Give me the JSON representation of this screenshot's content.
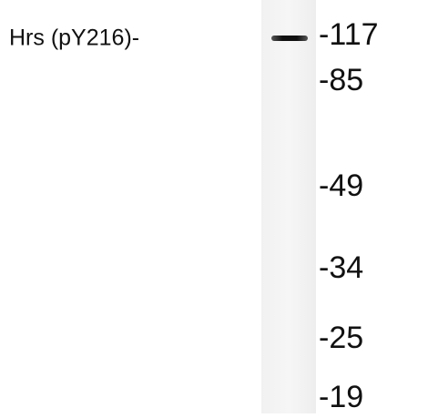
{
  "blot": {
    "band_label": "Hrs (pY216)-",
    "markers": [
      "-117",
      "-85",
      "-49",
      "-34",
      "-25",
      "-19"
    ]
  }
}
